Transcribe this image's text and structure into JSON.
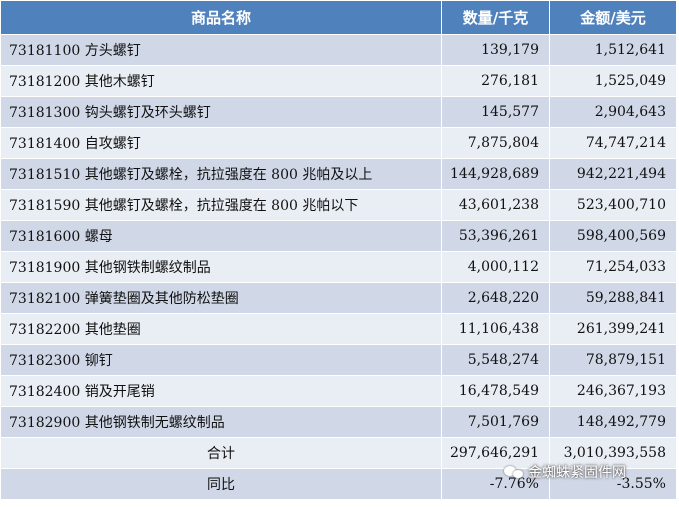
{
  "table": {
    "headers": {
      "name": "商品名称",
      "quantity": "数量/千克",
      "amount": "金额/美元"
    },
    "rows": [
      {
        "name": "73181100 方头螺钉",
        "quantity": "139,179",
        "amount": "1,512,641"
      },
      {
        "name": "73181200 其他木螺钉",
        "quantity": "276,181",
        "amount": "1,525,049"
      },
      {
        "name": "73181300 钩头螺钉及环头螺钉",
        "quantity": "145,577",
        "amount": "2,904,643"
      },
      {
        "name": "73181400 自攻螺钉",
        "quantity": "7,875,804",
        "amount": "74,747,214"
      },
      {
        "name": "73181510 其他螺钉及螺栓，抗拉强度在 800 兆帕及以上",
        "quantity": "144,928,689",
        "amount": "942,221,494"
      },
      {
        "name": "73181590 其他螺钉及螺栓，抗拉强度在 800 兆帕以下",
        "quantity": "43,601,238",
        "amount": "523,400,710"
      },
      {
        "name": "73181600 螺母",
        "quantity": "53,396,261",
        "amount": "598,400,569"
      },
      {
        "name": "73181900 其他钢铁制螺纹制品",
        "quantity": "4,000,112",
        "amount": "71,254,033"
      },
      {
        "name": "73182100 弹簧垫圈及其他防松垫圈",
        "quantity": "2,648,220",
        "amount": "59,288,841"
      },
      {
        "name": "73182200 其他垫圈",
        "quantity": "11,106,438",
        "amount": "261,399,241"
      },
      {
        "name": "73182300 铆钉",
        "quantity": "5,548,274",
        "amount": "78,879,151"
      },
      {
        "name": "73182400 销及开尾销",
        "quantity": "16,478,549",
        "amount": "246,367,193"
      },
      {
        "name": "73182900 其他钢铁制无螺纹制品",
        "quantity": "7,501,769",
        "amount": "148,492,779"
      }
    ],
    "total": {
      "label": "合计",
      "quantity": "297,646,291",
      "amount": "3,010,393,558"
    },
    "yoy": {
      "label": "同比",
      "quantity": "-7.76%",
      "amount": "-3.55%"
    }
  },
  "watermark": {
    "icon": "wechat-icon",
    "text": "金蜘蛛紧固件网"
  },
  "colors": {
    "header_bg": "#4f81bd",
    "row_dark": "#d0d8e8",
    "row_light": "#e9edf4"
  }
}
